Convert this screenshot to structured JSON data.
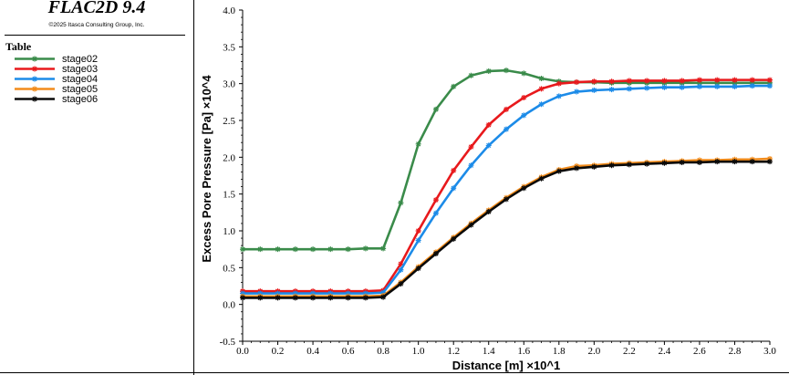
{
  "app": {
    "title": "FLAC2D 9.4",
    "copyright": "©2025 Itasca Consulting Group, Inc."
  },
  "legend": {
    "heading": "Table",
    "entries": [
      {
        "label": "stage02",
        "color": "#3a8b4a"
      },
      {
        "label": "stage03",
        "color": "#e8191c"
      },
      {
        "label": "stage04",
        "color": "#1c8be8"
      },
      {
        "label": "stage05",
        "color": "#f28c1c"
      },
      {
        "label": "stage06",
        "color": "#0a0a0a"
      }
    ]
  },
  "chart_data": {
    "type": "line",
    "xlabel": "Distance [m] ×10^1",
    "ylabel": "Excess Pore Pressure [Pa] ×10^4",
    "xlim": [
      0.0,
      3.0
    ],
    "ylim": [
      -0.5,
      4.0
    ],
    "xticks": [
      "0.0",
      "0.2",
      "0.4",
      "0.6",
      "0.8",
      "1.0",
      "1.2",
      "1.4",
      "1.6",
      "1.8",
      "2.0",
      "2.2",
      "2.4",
      "2.6",
      "2.8",
      "3.0"
    ],
    "yticks": [
      "-0.5",
      "0.0",
      "0.5",
      "1.0",
      "1.5",
      "2.0",
      "2.5",
      "3.0",
      "3.5",
      "4.0"
    ],
    "grid": false,
    "legend_position": "left-panel",
    "x": [
      0.0,
      0.1,
      0.2,
      0.3,
      0.4,
      0.5,
      0.6,
      0.7,
      0.8,
      0.9,
      1.0,
      1.1,
      1.2,
      1.3,
      1.4,
      1.5,
      1.6,
      1.7,
      1.8,
      1.9,
      2.0,
      2.1,
      2.2,
      2.3,
      2.4,
      2.5,
      2.6,
      2.7,
      2.8,
      2.9,
      3.0
    ],
    "series": [
      {
        "name": "stage02",
        "values": [
          0.75,
          0.75,
          0.75,
          0.75,
          0.75,
          0.75,
          0.75,
          0.76,
          0.76,
          1.38,
          2.18,
          2.65,
          2.96,
          3.11,
          3.17,
          3.18,
          3.14,
          3.07,
          3.03,
          3.02,
          3.02,
          3.01,
          3.01,
          3.01,
          3.01,
          3.01,
          3.01,
          3.01,
          3.01,
          3.01,
          3.01
        ]
      },
      {
        "name": "stage03",
        "values": [
          0.18,
          0.18,
          0.18,
          0.18,
          0.18,
          0.18,
          0.18,
          0.18,
          0.19,
          0.55,
          1.0,
          1.42,
          1.82,
          2.14,
          2.44,
          2.65,
          2.81,
          2.93,
          3.0,
          3.02,
          3.03,
          3.03,
          3.04,
          3.04,
          3.04,
          3.04,
          3.05,
          3.05,
          3.05,
          3.05,
          3.05
        ]
      },
      {
        "name": "stage04",
        "values": [
          0.15,
          0.15,
          0.15,
          0.15,
          0.15,
          0.15,
          0.15,
          0.15,
          0.16,
          0.47,
          0.87,
          1.24,
          1.58,
          1.89,
          2.16,
          2.38,
          2.57,
          2.72,
          2.83,
          2.89,
          2.91,
          2.92,
          2.93,
          2.94,
          2.95,
          2.95,
          2.96,
          2.96,
          2.96,
          2.97,
          2.97
        ]
      },
      {
        "name": "stage05",
        "values": [
          0.11,
          0.11,
          0.11,
          0.11,
          0.11,
          0.11,
          0.11,
          0.11,
          0.12,
          0.3,
          0.51,
          0.71,
          0.91,
          1.1,
          1.28,
          1.45,
          1.6,
          1.73,
          1.83,
          1.88,
          1.89,
          1.91,
          1.92,
          1.93,
          1.94,
          1.95,
          1.96,
          1.96,
          1.97,
          1.97,
          1.98
        ]
      },
      {
        "name": "stage06",
        "values": [
          0.09,
          0.09,
          0.09,
          0.09,
          0.09,
          0.09,
          0.09,
          0.09,
          0.1,
          0.28,
          0.49,
          0.69,
          0.89,
          1.08,
          1.26,
          1.43,
          1.58,
          1.71,
          1.81,
          1.85,
          1.87,
          1.89,
          1.9,
          1.91,
          1.92,
          1.93,
          1.93,
          1.94,
          1.94,
          1.94,
          1.94
        ]
      }
    ]
  }
}
